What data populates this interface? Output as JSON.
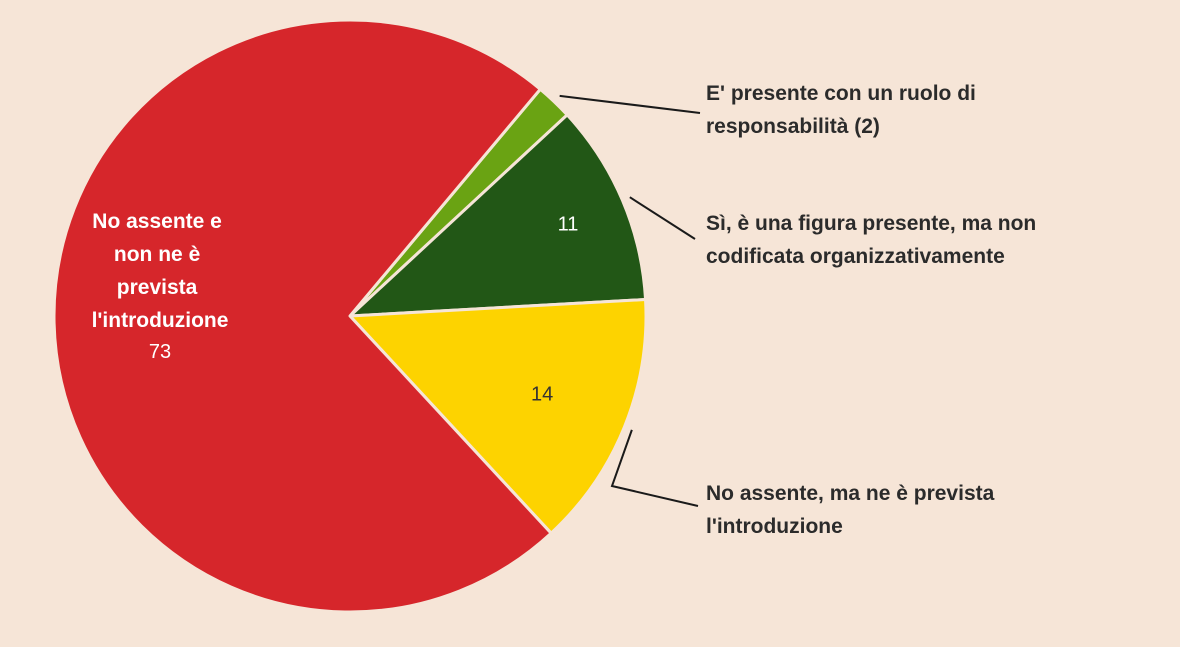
{
  "chart_data": {
    "type": "pie",
    "title": "",
    "start_angle_deg": 0,
    "slices": [
      {
        "key": "responsabilita",
        "label_lines": [
          "E' presente con un ruolo di",
          "responsabilità (2)"
        ],
        "value": 2,
        "value_label": "",
        "color": "#6aa313"
      },
      {
        "key": "non-codificata",
        "label_lines": [
          "Sì, è una figura presente, ma non",
          "codificata organizzativamente"
        ],
        "value": 11,
        "value_label": "11",
        "color": "#225716"
      },
      {
        "key": "prevista",
        "label_lines": [
          "No  assente, ma ne è prevista",
          "l'introduzione"
        ],
        "value": 14,
        "value_label": "14",
        "color": "#fdd300"
      },
      {
        "key": "non-prevista",
        "label_lines": [
          "No  assente e",
          "non ne è",
          "prevista",
          "l'introduzione"
        ],
        "value": 73,
        "value_label": "73",
        "color": "#d6262b"
      }
    ],
    "colors": {
      "background": "#f6e5d7",
      "slice_border": "#f6e5d7",
      "external_label_text": "#2b2b2b",
      "inner_label_text": "#ffffff",
      "leader_line": "#1a1a1a"
    }
  }
}
